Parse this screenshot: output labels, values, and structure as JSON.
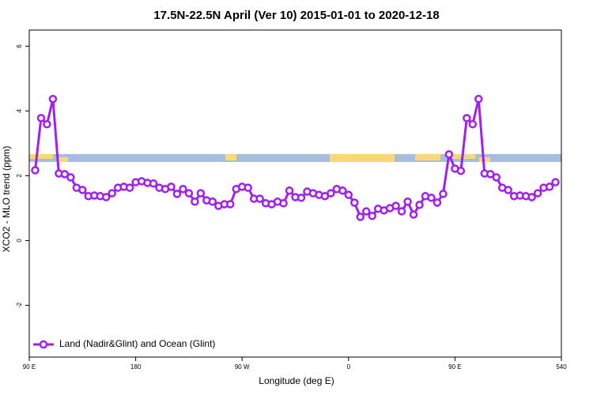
{
  "chart_data": {
    "type": "line",
    "title": "17.5N-22.5N April (Ver 10)   2015-01-01 to 2020-12-18",
    "x_label": "Longitude (deg E)",
    "y_label": "XCO2 - MLO trend (ppm)",
    "xlim": [
      90,
      540
    ],
    "ylim": [
      -3.6,
      6.5
    ],
    "xticks": [
      {
        "value": 90,
        "label": "90 E"
      },
      180,
      {
        "value": 270,
        "label": "90 W"
      },
      {
        "value": 360,
        "label": "0"
      },
      {
        "value": 450,
        "label": "90 E"
      },
      540
    ],
    "yticks": [
      -2,
      0,
      2,
      4,
      6
    ],
    "legend": "bottom-left",
    "x": [
      95,
      100,
      105,
      110,
      115,
      120,
      125,
      130,
      135,
      140,
      145,
      150,
      155,
      160,
      165,
      170,
      175,
      180,
      185,
      190,
      195,
      200,
      205,
      210,
      215,
      220,
      225,
      230,
      235,
      240,
      245,
      250,
      255,
      260,
      265,
      270,
      275,
      280,
      285,
      290,
      295,
      300,
      305,
      310,
      315,
      320,
      325,
      330,
      335,
      340,
      345,
      350,
      355,
      360,
      365,
      370,
      375,
      380,
      385,
      390,
      395,
      400,
      405,
      410,
      415,
      420,
      425,
      430,
      435,
      440,
      445,
      450,
      455,
      460,
      465,
      470,
      475,
      480,
      485,
      490,
      495,
      500,
      505,
      510,
      515,
      520,
      525,
      530,
      535
    ],
    "series": [
      {
        "name": "Land (Nadir&Glint) and Ocean (Glint)",
        "color": "#a020f0",
        "values": [
          2.17,
          3.78,
          3.59,
          4.37,
          2.07,
          2.05,
          1.95,
          1.63,
          1.56,
          1.37,
          1.39,
          1.37,
          1.34,
          1.46,
          1.63,
          1.66,
          1.63,
          1.8,
          1.83,
          1.78,
          1.76,
          1.63,
          1.59,
          1.66,
          1.44,
          1.59,
          1.46,
          1.2,
          1.46,
          1.24,
          1.2,
          1.07,
          1.12,
          1.12,
          1.59,
          1.66,
          1.63,
          1.29,
          1.29,
          1.15,
          1.12,
          1.2,
          1.15,
          1.54,
          1.34,
          1.32,
          1.51,
          1.46,
          1.41,
          1.37,
          1.46,
          1.59,
          1.54,
          1.41,
          1.17,
          0.73,
          0.9,
          0.76,
          0.98,
          0.93,
          1.0,
          1.07,
          0.9,
          1.2,
          0.8,
          1.1,
          1.37,
          1.32,
          1.17,
          1.44,
          2.66,
          2.22,
          2.15,
          3.78,
          3.59,
          4.37,
          2.07,
          2.05,
          1.95,
          1.63,
          1.56,
          1.37,
          1.39,
          1.37,
          1.34,
          1.46,
          1.63,
          1.66,
          1.8
        ]
      }
    ]
  }
}
